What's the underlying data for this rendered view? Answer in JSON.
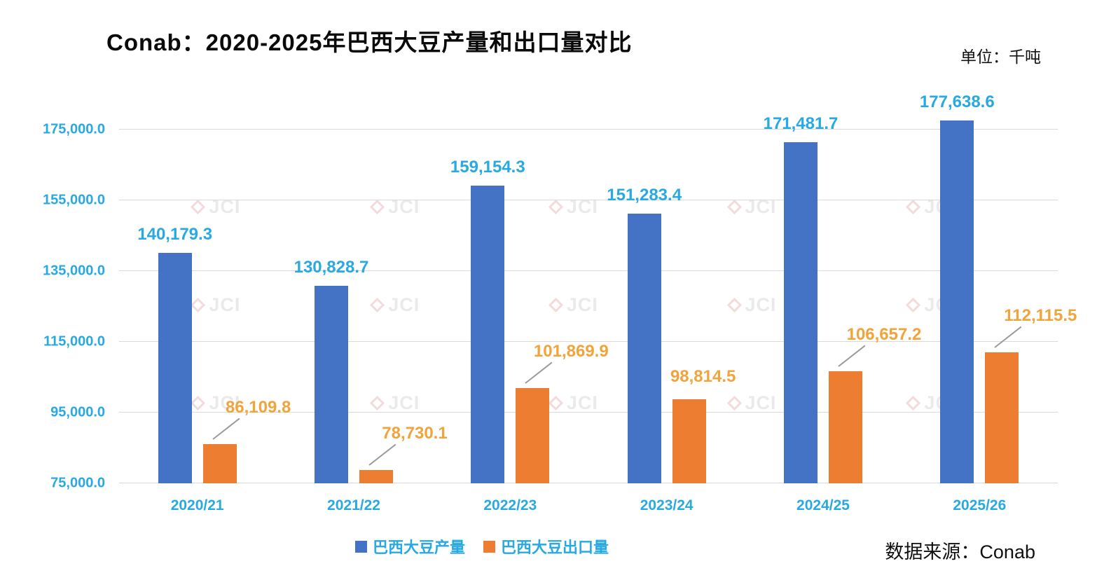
{
  "header": {
    "title": "Conab：2020-2025年巴西大豆产量和出口量对比",
    "unit": "单位：千吨"
  },
  "footer": {
    "source": "数据来源：Conab"
  },
  "watermark": {
    "text": "JCI"
  },
  "chart_data": {
    "type": "bar",
    "title": "Conab：2020-2025年巴西大豆产量和出口量对比",
    "unit": "千吨",
    "categories": [
      "2020/21",
      "2021/22",
      "2022/23",
      "2023/24",
      "2024/25",
      "2025/26"
    ],
    "series": [
      {
        "name": "巴西大豆产量",
        "color": "#4472C4",
        "label_color": "#29A9E1",
        "values": [
          140179.3,
          130828.7,
          159154.3,
          151283.4,
          171481.7,
          177638.6
        ]
      },
      {
        "name": "巴西大豆出口量",
        "color": "#ED7D31",
        "label_color": "#F0A43C",
        "values": [
          86109.8,
          78730.1,
          101869.9,
          98814.5,
          106657.2,
          112115.5
        ],
        "label_leaders": [
          true,
          true,
          true,
          false,
          true,
          true
        ]
      }
    ],
    "ylim": [
      75000,
      175000
    ],
    "yticks": [
      75000,
      95000,
      115000,
      135000,
      155000,
      175000
    ],
    "grid": true,
    "legend_position": "bottom",
    "axis_color": "#29A9E1",
    "gridline_color": "#d9d9d9"
  }
}
